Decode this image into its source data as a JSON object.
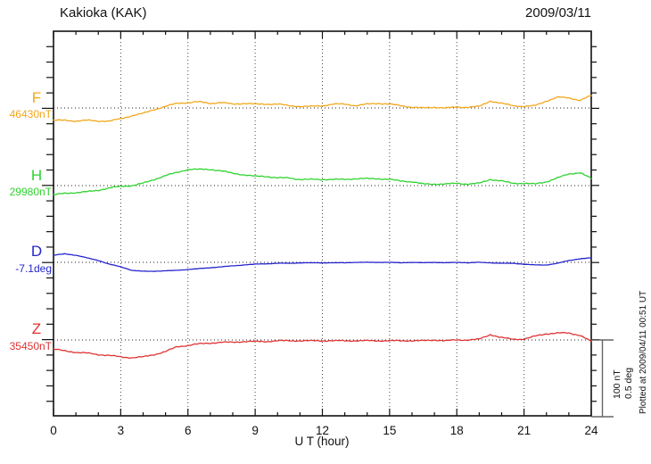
{
  "header": {
    "title": "Kakioka (KAK)",
    "date": "2009/03/11"
  },
  "x_axis": {
    "title": "U T (hour)",
    "tick_labels": [
      "0",
      "3",
      "6",
      "9",
      "12",
      "15",
      "18",
      "21",
      "24"
    ],
    "min_hour": 0,
    "max_hour": 24,
    "minor_tick_hours": 1,
    "major_tick_hours": 3
  },
  "scale_bar": {
    "line1": "100 nT",
    "line2": "0.5 deg"
  },
  "footer_note": "Plotted at 2009/04/11 00:51 UT",
  "chart_data": {
    "type": "line",
    "title": "Kakioka (KAK)",
    "date": "2009/03/11",
    "xlabel": "U T (hour)",
    "x_start_hour": 0,
    "x_end_hour": 24,
    "x_step_hours": 0.5,
    "xlim": [
      0,
      24
    ],
    "grid": "vertical dotted gridlines every 3 hours; dotted horizontal baseline per channel",
    "legend_position": "channel labels in left margin",
    "amplitude_scale": "100 nT = 0.5 deg = same plotted height",
    "series": [
      {
        "name": "F",
        "baseline_label": "46430nT",
        "baseline_value": 46430,
        "unit": "nT",
        "color": "#f2a71b",
        "values": [
          46414,
          46414,
          46413,
          46414,
          46413,
          46413,
          46416,
          46420,
          46423,
          46428,
          46432,
          46436,
          46437,
          46438,
          46436,
          46437,
          46435,
          46436,
          46435,
          46435,
          46435,
          46433,
          46432,
          46432,
          46433,
          46435,
          46435,
          46433,
          46435,
          46436,
          46435,
          46433,
          46431,
          46430,
          46431,
          46430,
          46431,
          46431,
          46432,
          46439,
          46436,
          46433,
          46432,
          46433,
          46439,
          46444,
          46443,
          46440,
          46446
        ]
      },
      {
        "name": "H",
        "baseline_label": "29980nT",
        "baseline_value": 29980,
        "unit": "nT",
        "color": "#2fd32f",
        "values": [
          29968,
          29970,
          29971,
          29972,
          29974,
          29977,
          29979,
          29980,
          29983,
          29988,
          29993,
          29997,
          30001,
          30001,
          30001,
          29999,
          29996,
          29994,
          29992,
          29992,
          29990,
          29990,
          29988,
          29988,
          29988,
          29988,
          29988,
          29989,
          29989,
          29989,
          29988,
          29986,
          29985,
          29982,
          29982,
          29982,
          29983,
          29982,
          29983,
          29988,
          29986,
          29983,
          29983,
          29982,
          29985,
          29990,
          29995,
          29997,
          29989
        ]
      },
      {
        "name": "D",
        "baseline_label": "-7.1deg",
        "baseline_value": -7.1,
        "unit": "deg",
        "color": "#2525cc",
        "values": [
          -7.054,
          -7.045,
          -7.054,
          -7.071,
          -7.088,
          -7.112,
          -7.129,
          -7.152,
          -7.158,
          -7.158,
          -7.155,
          -7.152,
          -7.146,
          -7.141,
          -7.135,
          -7.129,
          -7.123,
          -7.117,
          -7.112,
          -7.109,
          -7.106,
          -7.106,
          -7.103,
          -7.103,
          -7.103,
          -7.103,
          -7.103,
          -7.1,
          -7.1,
          -7.1,
          -7.1,
          -7.103,
          -7.1,
          -7.103,
          -7.1,
          -7.103,
          -7.1,
          -7.103,
          -7.1,
          -7.103,
          -7.106,
          -7.106,
          -7.112,
          -7.117,
          -7.117,
          -7.106,
          -7.088,
          -7.077,
          -7.071
        ]
      },
      {
        "name": "Z",
        "baseline_label": "35450nT",
        "baseline_value": 35450,
        "unit": "nT",
        "color": "#e03232",
        "values": [
          35438,
          35436,
          35434,
          35433,
          35431,
          35430,
          35428,
          35427,
          35428,
          35431,
          35435,
          35441,
          35443,
          35445,
          35446,
          35447,
          35447,
          35448,
          35448,
          35448,
          35449,
          35449,
          35449,
          35449,
          35449,
          35449,
          35449,
          35449,
          35449,
          35449,
          35449,
          35449,
          35449,
          35449,
          35450,
          35449,
          35450,
          35450,
          35451,
          35457,
          35453,
          35451,
          35451,
          35455,
          35458,
          35459,
          35459,
          35456,
          35448
        ]
      }
    ]
  }
}
